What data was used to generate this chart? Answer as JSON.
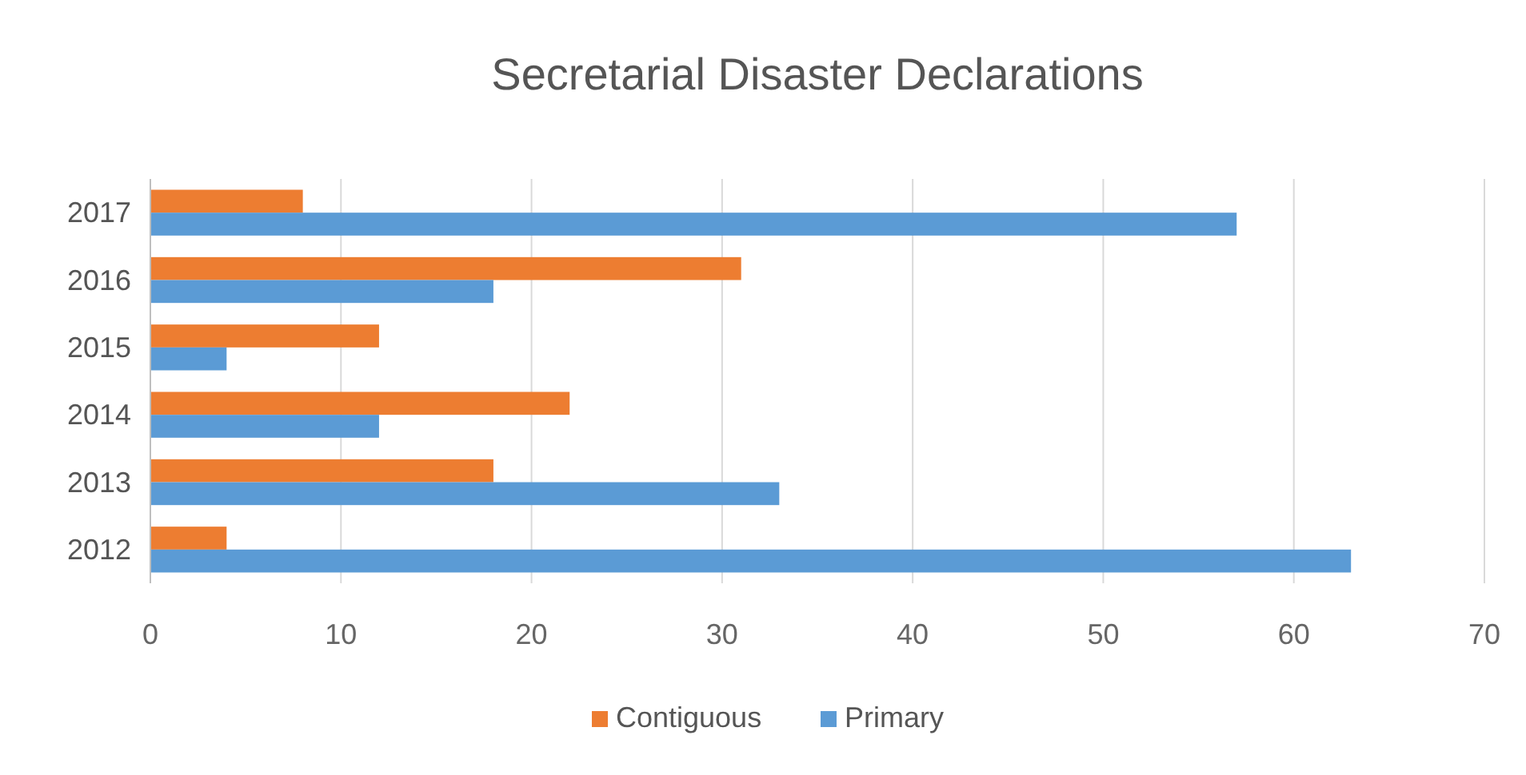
{
  "chart_data": {
    "type": "bar",
    "orientation": "horizontal",
    "title": "Secretarial Disaster Declarations",
    "categories": [
      "2017",
      "2016",
      "2015",
      "2014",
      "2013",
      "2012"
    ],
    "series": [
      {
        "name": "Contiguous",
        "color": "#ed7d31",
        "values": [
          8,
          31,
          12,
          22,
          18,
          4
        ]
      },
      {
        "name": "Primary",
        "color": "#5b9bd5",
        "values": [
          57,
          18,
          4,
          12,
          33,
          63
        ]
      }
    ],
    "xlim": [
      0,
      70
    ],
    "xticks": [
      0,
      10,
      20,
      30,
      40,
      50,
      60,
      70
    ],
    "grid": "x",
    "legend": "bottom"
  }
}
